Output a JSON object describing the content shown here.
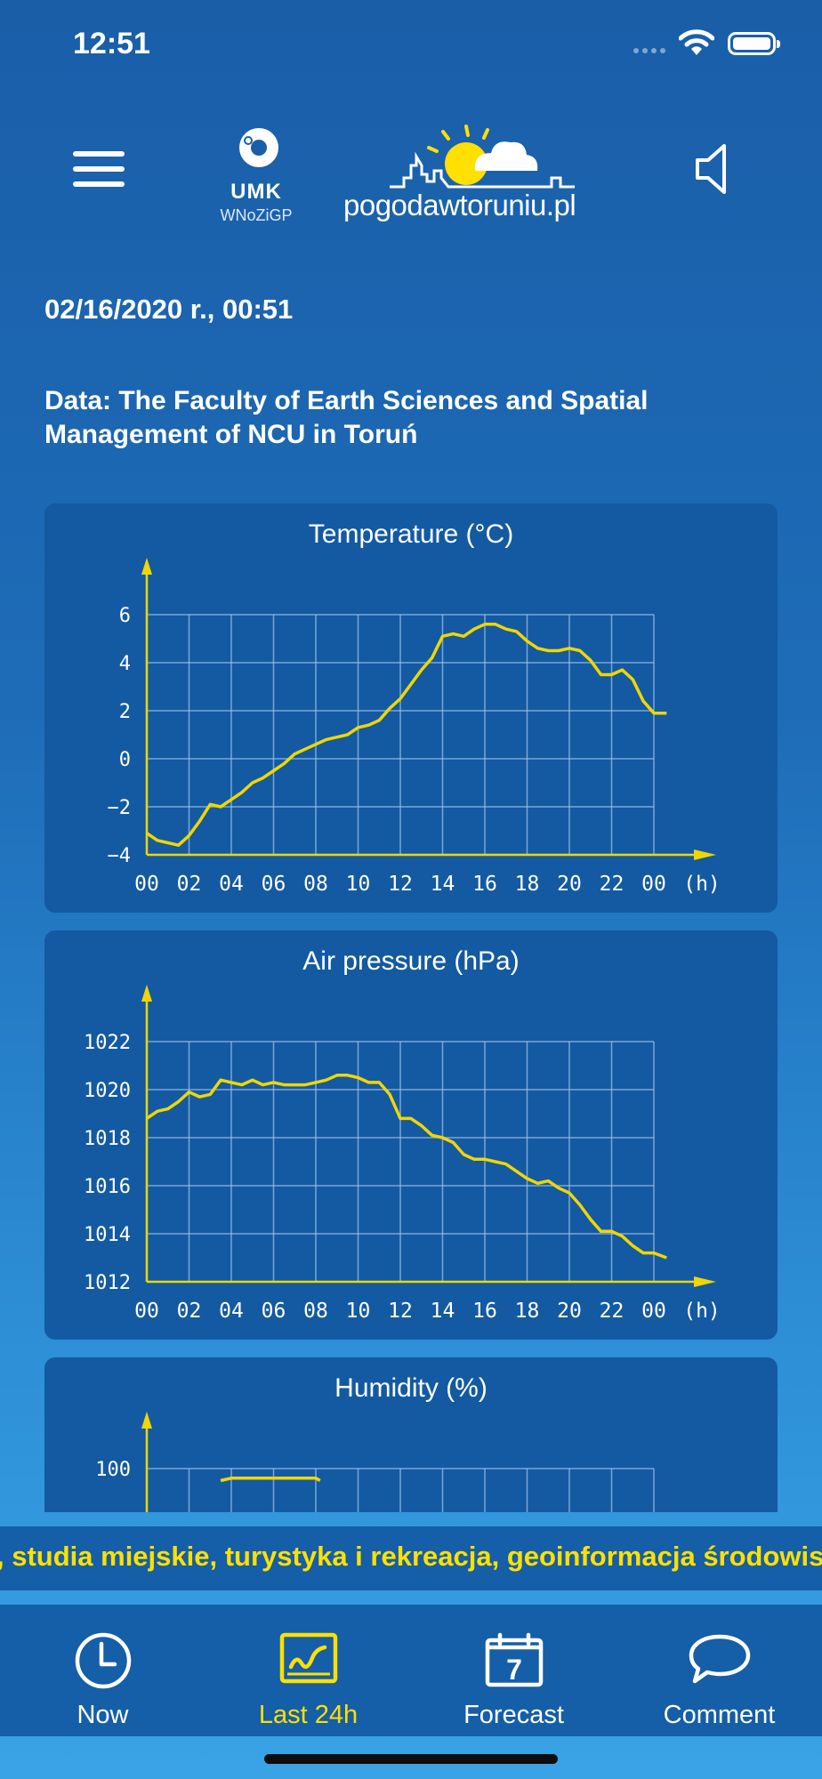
{
  "status_bar": {
    "time": "12:51"
  },
  "header": {
    "logo_umk": {
      "name": "UMK",
      "subtitle": "WNoZiGP"
    },
    "logo_brand": "pogodawtoruniu.pl"
  },
  "date_text": "02/16/2020 r., 00:51",
  "source_text": "Data: The Faculty of Earth Sciences and Spatial Management of NCU in Toruń",
  "chart_data": [
    {
      "type": "line",
      "title": "Temperature (°C)",
      "x_tick_labels": [
        "00",
        "02",
        "04",
        "06",
        "08",
        "10",
        "12",
        "14",
        "16",
        "18",
        "20",
        "22",
        "00"
      ],
      "x_unit_label": "(h)",
      "y_ticks": [
        -4,
        -2,
        0,
        2,
        4,
        6
      ],
      "ylim": [
        -4,
        6
      ],
      "grid": true,
      "color": "#f2d600",
      "series": [
        {
          "x": [
            0,
            0.5,
            1,
            1.5,
            2,
            2.5,
            3,
            3.5,
            4,
            4.5,
            5,
            5.5,
            6,
            6.5,
            7,
            7.5,
            8,
            8.5,
            9,
            9.5,
            10,
            10.5,
            11,
            11.5,
            12,
            12.5,
            13,
            13.5,
            14,
            14.5,
            15,
            15.5,
            16,
            16.5,
            17,
            17.5,
            18,
            18.5,
            19,
            19.5,
            20,
            20.5,
            21,
            21.5,
            22,
            22.5,
            23,
            23.5,
            24,
            24.6
          ],
          "y": [
            -3.1,
            -3.4,
            -3.5,
            -3.6,
            -3.2,
            -2.6,
            -1.9,
            -2.0,
            -1.7,
            -1.4,
            -1.0,
            -0.8,
            -0.5,
            -0.2,
            0.2,
            0.4,
            0.6,
            0.8,
            0.9,
            1.0,
            1.3,
            1.4,
            1.6,
            2.1,
            2.5,
            3.1,
            3.7,
            4.2,
            5.1,
            5.2,
            5.1,
            5.4,
            5.6,
            5.6,
            5.4,
            5.3,
            4.9,
            4.6,
            4.5,
            4.5,
            4.6,
            4.5,
            4.1,
            3.5,
            3.5,
            3.7,
            3.3,
            2.4,
            1.9,
            1.9
          ]
        }
      ]
    },
    {
      "type": "line",
      "title": "Air pressure (hPa)",
      "x_tick_labels": [
        "00",
        "02",
        "04",
        "06",
        "08",
        "10",
        "12",
        "14",
        "16",
        "18",
        "20",
        "22",
        "00"
      ],
      "x_unit_label": "(h)",
      "y_ticks": [
        1012,
        1014,
        1016,
        1018,
        1020,
        1022
      ],
      "ylim": [
        1012,
        1022
      ],
      "grid": true,
      "color": "#f2d600",
      "series": [
        {
          "x": [
            0,
            0.5,
            1,
            1.5,
            2,
            2.5,
            3,
            3.5,
            4,
            4.5,
            5,
            5.5,
            6,
            6.5,
            7,
            7.5,
            8,
            8.5,
            9,
            9.5,
            10,
            10.5,
            11,
            11.5,
            12,
            12.5,
            13,
            13.5,
            14,
            14.5,
            15,
            15.5,
            16,
            16.5,
            17,
            17.5,
            18,
            18.5,
            19,
            19.5,
            20,
            20.5,
            21,
            21.5,
            22,
            22.5,
            23,
            23.5,
            24,
            24.6
          ],
          "y": [
            1018.8,
            1019.1,
            1019.2,
            1019.5,
            1019.9,
            1019.7,
            1019.8,
            1020.4,
            1020.3,
            1020.2,
            1020.4,
            1020.2,
            1020.3,
            1020.2,
            1020.2,
            1020.2,
            1020.3,
            1020.4,
            1020.6,
            1020.6,
            1020.5,
            1020.3,
            1020.3,
            1019.8,
            1018.8,
            1018.8,
            1018.5,
            1018.1,
            1018.0,
            1017.8,
            1017.3,
            1017.1,
            1017.1,
            1017.0,
            1016.9,
            1016.6,
            1016.3,
            1016.1,
            1016.2,
            1015.9,
            1015.7,
            1015.2,
            1014.6,
            1014.1,
            1014.1,
            1013.9,
            1013.5,
            1013.2,
            1013.2,
            1013.0
          ]
        }
      ]
    },
    {
      "type": "line",
      "title": "Humidity (%)",
      "y_ticks": [
        100
      ],
      "grid": true,
      "color": "#f2d600",
      "series": [
        {
          "x": [
            3.5,
            4,
            5,
            6,
            7,
            8,
            8.2
          ],
          "y": [
            95,
            96,
            96,
            96,
            96,
            96,
            95
          ]
        }
      ]
    }
  ],
  "ticker_text": ", studia miejskie, turystyka i rekreacja, geoinformacja środowiskowa",
  "tabs": [
    {
      "label": "Now",
      "icon": "clock-icon",
      "active": false
    },
    {
      "label": "Last 24h",
      "icon": "chart-icon",
      "active": true
    },
    {
      "label": "Forecast",
      "icon": "calendar-icon",
      "active": false,
      "icon_text": "7"
    },
    {
      "label": "Comment",
      "icon": "speech-bubble-icon",
      "active": false
    }
  ],
  "colors": {
    "accent": "#f2d600",
    "card": "#135aa2",
    "background": "#1e6cb8"
  }
}
